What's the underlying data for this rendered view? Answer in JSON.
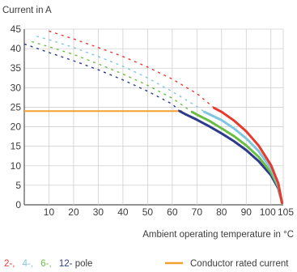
{
  "chart_data": {
    "type": "line",
    "ylabel": "Current in A",
    "xlabel": "Ambient operating temperature in °C",
    "xlim": [
      0,
      105
    ],
    "ylim": [
      0,
      45
    ],
    "x_ticks": [
      10,
      20,
      30,
      40,
      50,
      60,
      70,
      80,
      90,
      100,
      105
    ],
    "y_ticks": [
      0,
      5,
      10,
      15,
      20,
      25,
      30,
      35,
      40,
      45
    ],
    "grid": true,
    "series": [
      {
        "name": "2-",
        "color": "#e8392d",
        "dashed_points": [
          [
            10,
            44.5
          ],
          [
            20,
            42.5
          ],
          [
            30,
            40.3
          ],
          [
            40,
            38.0
          ],
          [
            50,
            35.3
          ],
          [
            60,
            32.2
          ],
          [
            70,
            28.5
          ],
          [
            77,
            24.8
          ]
        ],
        "solid_points": [
          [
            77,
            24.8
          ],
          [
            80,
            23.8
          ],
          [
            85,
            21.6
          ],
          [
            90,
            18.8
          ],
          [
            95,
            15.2
          ],
          [
            100,
            10.2
          ],
          [
            103,
            5.5
          ],
          [
            104.5,
            0.5
          ]
        ]
      },
      {
        "name": "4-",
        "color": "#7fc6e0",
        "dashed_points": [
          [
            5,
            43.2
          ],
          [
            10,
            42.3
          ],
          [
            20,
            40.3
          ],
          [
            30,
            38.0
          ],
          [
            40,
            35.5
          ],
          [
            50,
            32.5
          ],
          [
            60,
            29.0
          ],
          [
            70,
            25.2
          ],
          [
            73,
            23.8
          ]
        ],
        "solid_points": [
          [
            73,
            23.8
          ],
          [
            80,
            21.7
          ],
          [
            85,
            19.6
          ],
          [
            90,
            17.0
          ],
          [
            95,
            13.8
          ],
          [
            100,
            9.3
          ],
          [
            103,
            5.0
          ],
          [
            104.5,
            0.5
          ]
        ]
      },
      {
        "name": "6-",
        "color": "#6cbd45",
        "dashed_points": [
          [
            3,
            41.8
          ],
          [
            10,
            40.5
          ],
          [
            20,
            38.5
          ],
          [
            30,
            36.1
          ],
          [
            40,
            33.5
          ],
          [
            50,
            30.6
          ],
          [
            60,
            27.3
          ],
          [
            68,
            23.8
          ]
        ],
        "solid_points": [
          [
            68,
            23.8
          ],
          [
            70,
            23.1
          ],
          [
            75,
            21.5
          ],
          [
            80,
            19.6
          ],
          [
            85,
            17.6
          ],
          [
            90,
            15.2
          ],
          [
            95,
            12.3
          ],
          [
            100,
            8.3
          ],
          [
            103,
            4.6
          ],
          [
            104.5,
            0.5
          ]
        ]
      },
      {
        "name": "12-",
        "color": "#2e3a8c",
        "dashed_points": [
          [
            0,
            41.2
          ],
          [
            10,
            39.0
          ],
          [
            20,
            36.9
          ],
          [
            30,
            34.6
          ],
          [
            40,
            32.0
          ],
          [
            50,
            29.1
          ],
          [
            60,
            25.8
          ],
          [
            63,
            24.0
          ]
        ],
        "solid_points": [
          [
            63,
            24.0
          ],
          [
            65,
            23.3
          ],
          [
            70,
            21.8
          ],
          [
            75,
            20.1
          ],
          [
            80,
            18.3
          ],
          [
            85,
            16.3
          ],
          [
            90,
            14.0
          ],
          [
            95,
            11.2
          ],
          [
            100,
            7.6
          ],
          [
            103,
            4.2
          ],
          [
            104.5,
            0.5
          ]
        ]
      },
      {
        "name": "Conductor rated current",
        "color": "#f2a12e",
        "points": [
          [
            0,
            24
          ],
          [
            64,
            24
          ]
        ]
      }
    ],
    "legend": {
      "pole_prefixes": [
        {
          "text": "2-,",
          "color": "#e8392d"
        },
        {
          "text": "4-,",
          "color": "#7fc6e0"
        },
        {
          "text": "6-,",
          "color": "#6cbd45"
        },
        {
          "text": "12-",
          "color": "#2e3a8c"
        }
      ],
      "pole_suffix": "pole",
      "rated_label": "Conductor rated current",
      "rated_color": "#f2a12e",
      "placement": "bottom"
    }
  }
}
